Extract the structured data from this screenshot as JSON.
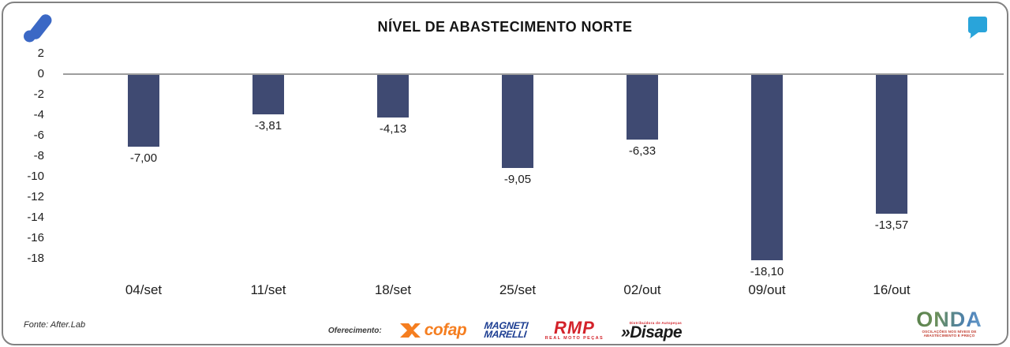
{
  "header": {
    "title": "NÍVEL DE ABASTECIMENTO NORTE",
    "brand_logo": "afterlab-mark-icon",
    "quote_icon_color": "#29A4DA",
    "brand_color": "#3B68C5"
  },
  "chart_data": {
    "type": "bar",
    "title": "NÍVEL DE ABASTECIMENTO NORTE",
    "categories": [
      "04/set",
      "11/set",
      "18/set",
      "25/set",
      "02/out",
      "09/out",
      "16/out"
    ],
    "values": [
      -7.0,
      -3.81,
      -4.13,
      -9.05,
      -6.33,
      -18.1,
      -13.57
    ],
    "value_labels": [
      "-7,00",
      "-3,81",
      "-4,13",
      "-9,05",
      "-6,33",
      "-18,10",
      "-13,57"
    ],
    "yticks": [
      "2",
      "0",
      "-2",
      "-4",
      "-6",
      "-8",
      "-10",
      "-12",
      "-14",
      "-16",
      "-18"
    ],
    "ylim": [
      -18,
      2
    ],
    "xlabel": "",
    "ylabel": "",
    "grid": false,
    "legend": false,
    "bar_color": "#3F4A72",
    "zero_line_color": "#9d9d9d"
  },
  "footer": {
    "fonte": "Fonte: After.Lab",
    "oferecimento_label": "Oferecimento:",
    "sponsors": [
      {
        "name": "cofap"
      },
      {
        "name": "MAGNETI MARELLI",
        "lines": [
          "MAGNETI",
          "MARELLI"
        ]
      },
      {
        "name": "RMP",
        "tagline": "REAL MOTO PEÇAS"
      },
      {
        "name": "Disape",
        "prefix": "»Disape",
        "tagline": "Distribuidora de Autopeças"
      }
    ],
    "onda": {
      "name": "ONDA",
      "tagline": "OSCILAÇÕES NOS NÍVEIS DE ABASTECIMENTO E PREÇO"
    }
  }
}
